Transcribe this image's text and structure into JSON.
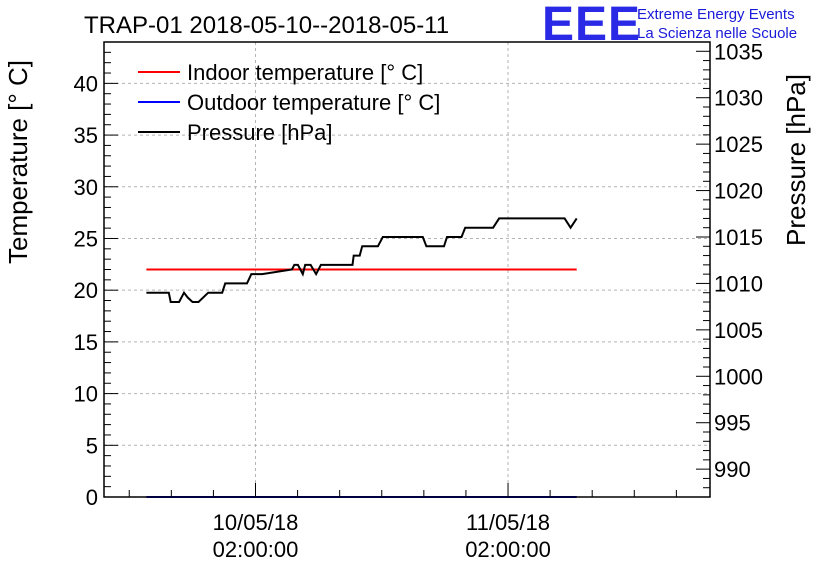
{
  "chart_data": {
    "type": "line",
    "title": "TRAP-01 2018-05-10--2018-05-11",
    "ylabel_left": "Temperature [° C]",
    "ylabel_right": "Pressure [hPa]",
    "x_start": 0.0,
    "x_end": 1.0,
    "x_ticks": [
      {
        "pos": 0.25,
        "date": "10/05/18",
        "time": "02:00:00"
      },
      {
        "pos": 0.6667,
        "date": "11/05/18",
        "time": "02:00:00"
      }
    ],
    "ylim_left": [
      0,
      44
    ],
    "yticks_left": [
      0,
      5,
      10,
      15,
      20,
      25,
      30,
      35,
      40
    ],
    "ylim_right": [
      987,
      1036
    ],
    "yticks_right": [
      990,
      995,
      1000,
      1005,
      1010,
      1015,
      1020,
      1025,
      1030,
      1035
    ],
    "grid": true,
    "legend_position": "top-left",
    "series": [
      {
        "name": "Indoor temperature [° C]",
        "color": "#ff0000",
        "axis": "left",
        "x": [
          0.07,
          0.78
        ],
        "y": [
          22,
          22
        ]
      },
      {
        "name": "Outdoor temperature [° C]",
        "color": "#0000ff",
        "axis": "left",
        "x": [
          0.07,
          0.78
        ],
        "y": [
          0,
          0
        ]
      },
      {
        "name": "Pressure [hPa]",
        "color": "#000000",
        "axis": "right",
        "x": [
          0.07,
          0.107,
          0.11,
          0.124,
          0.132,
          0.138,
          0.146,
          0.156,
          0.172,
          0.195,
          0.2,
          0.219,
          0.224,
          0.236,
          0.243,
          0.253,
          0.261,
          0.31,
          0.314,
          0.32,
          0.328,
          0.332,
          0.336,
          0.341,
          0.35,
          0.358,
          0.36,
          0.365,
          0.37,
          0.4,
          0.41,
          0.412,
          0.417,
          0.422,
          0.426,
          0.447,
          0.452,
          0.46,
          0.526,
          0.532,
          0.561,
          0.566,
          0.59,
          0.596,
          0.642,
          0.652,
          0.76,
          0.77,
          0.78
        ],
        "y": [
          1009,
          1009,
          1008,
          1008,
          1009,
          1008.5,
          1008,
          1008,
          1009,
          1009,
          1010,
          1010,
          1010,
          1010,
          1011,
          1011,
          1011,
          1011.5,
          1012,
          1012,
          1011,
          1012,
          1012,
          1012,
          1011,
          1012,
          1012,
          1012,
          1012,
          1012,
          1012,
          1013,
          1013,
          1013,
          1014,
          1014,
          1014,
          1015,
          1015,
          1014,
          1014,
          1015,
          1015,
          1016,
          1016,
          1017,
          1017,
          1016,
          1017
        ]
      }
    ]
  },
  "logo": {
    "mark": "EEE",
    "line1": "Extreme Energy Events",
    "line2": "La Scienza nelle Scuole"
  }
}
